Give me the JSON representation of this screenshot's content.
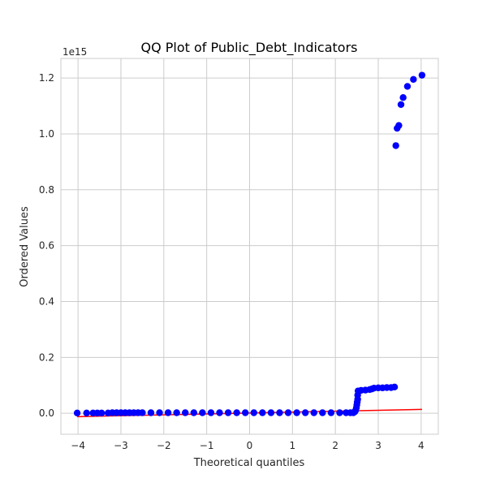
{
  "chart_data": {
    "type": "scatter",
    "title": "QQ Plot of Public_Debt_Indicators",
    "xlabel": "Theoretical quantiles",
    "ylabel": "Ordered Values",
    "offset_label": "1e15",
    "xlim": [
      -4.4,
      4.4
    ],
    "ylim": [
      -0.075,
      1.27
    ],
    "xticks": [
      -4,
      -3,
      -2,
      -1,
      0,
      1,
      2,
      3,
      4
    ],
    "xtick_labels": [
      "−4",
      "−3",
      "−2",
      "−1",
      "0",
      "1",
      "2",
      "3",
      "4"
    ],
    "yticks": [
      0.0,
      0.2,
      0.4,
      0.6,
      0.8,
      1.0,
      1.2
    ],
    "ytick_labels": [
      "0.0",
      "0.2",
      "0.4",
      "0.6",
      "0.8",
      "1.0",
      "1.2"
    ],
    "grid": true,
    "point_color": "#0000ff",
    "line_color": "#ff0000",
    "fit_line": {
      "x": [
        -4.02,
        4.02
      ],
      "y": [
        -0.012,
        0.014
      ]
    },
    "points": [
      [
        -4.02,
        0.001
      ],
      [
        -3.8,
        0.001
      ],
      [
        -3.65,
        0.001
      ],
      [
        -3.55,
        0.001
      ],
      [
        -3.45,
        0.001
      ],
      [
        -3.3,
        0.001
      ],
      [
        -3.2,
        0.002
      ],
      [
        -3.1,
        0.002
      ],
      [
        -3.0,
        0.002
      ],
      [
        -2.9,
        0.002
      ],
      [
        -2.8,
        0.002
      ],
      [
        -2.7,
        0.002
      ],
      [
        -2.6,
        0.002
      ],
      [
        -2.5,
        0.002
      ],
      [
        -2.3,
        0.002
      ],
      [
        -2.1,
        0.002
      ],
      [
        -1.9,
        0.002
      ],
      [
        -1.7,
        0.002
      ],
      [
        -1.5,
        0.002
      ],
      [
        -1.3,
        0.002
      ],
      [
        -1.1,
        0.002
      ],
      [
        -0.9,
        0.002
      ],
      [
        -0.7,
        0.002
      ],
      [
        -0.5,
        0.002
      ],
      [
        -0.3,
        0.002
      ],
      [
        -0.1,
        0.002
      ],
      [
        0.1,
        0.002
      ],
      [
        0.3,
        0.002
      ],
      [
        0.5,
        0.002
      ],
      [
        0.7,
        0.002
      ],
      [
        0.9,
        0.002
      ],
      [
        1.1,
        0.002
      ],
      [
        1.3,
        0.002
      ],
      [
        1.5,
        0.002
      ],
      [
        1.7,
        0.002
      ],
      [
        1.9,
        0.002
      ],
      [
        2.1,
        0.002
      ],
      [
        2.25,
        0.002
      ],
      [
        2.35,
        0.002
      ],
      [
        2.42,
        0.002
      ],
      [
        2.45,
        0.005
      ],
      [
        2.47,
        0.01
      ],
      [
        2.49,
        0.02
      ],
      [
        2.5,
        0.03
      ],
      [
        2.51,
        0.04
      ],
      [
        2.52,
        0.05
      ],
      [
        2.52,
        0.065
      ],
      [
        2.53,
        0.08
      ],
      [
        2.6,
        0.082
      ],
      [
        2.7,
        0.083
      ],
      [
        2.8,
        0.085
      ],
      [
        2.85,
        0.087
      ],
      [
        2.9,
        0.09
      ],
      [
        3.0,
        0.091
      ],
      [
        3.1,
        0.091
      ],
      [
        3.2,
        0.092
      ],
      [
        3.3,
        0.092
      ],
      [
        3.38,
        0.094
      ],
      [
        3.41,
        0.958
      ],
      [
        3.44,
        1.02
      ],
      [
        3.48,
        1.03
      ],
      [
        3.53,
        1.105
      ],
      [
        3.58,
        1.13
      ],
      [
        3.68,
        1.17
      ],
      [
        3.82,
        1.195
      ],
      [
        4.02,
        1.21
      ]
    ]
  }
}
